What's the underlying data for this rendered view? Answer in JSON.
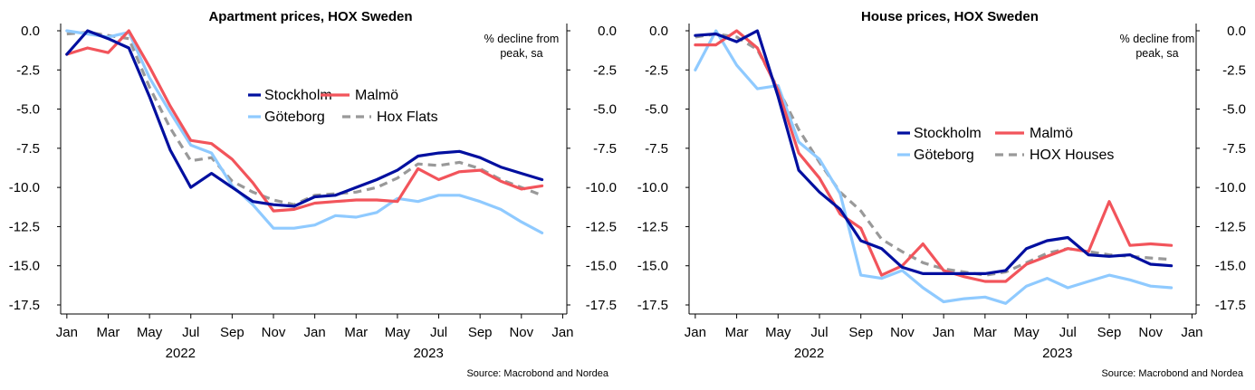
{
  "chart_data": [
    {
      "type": "line",
      "title": "Apartment prices, HOX Sweden",
      "annotation": [
        "% decline from",
        "peak, sa"
      ],
      "source": "Source: Macrobond and Nordea",
      "x_tick_labels": [
        "Jan",
        "Mar",
        "May",
        "Jul",
        "Sep",
        "Nov",
        "Jan",
        "Mar",
        "May",
        "Jul",
        "Sep",
        "Nov",
        "Jan"
      ],
      "year_labels": [
        "2022",
        "2023"
      ],
      "ylim": [
        -17.5,
        0
      ],
      "y_tick_labels": [
        "0.0",
        "-2.5",
        "-5.0",
        "-7.5",
        "-10.0",
        "-12.5",
        "-15.0",
        "-17.5"
      ],
      "grid": false,
      "legend_position": "center",
      "x_months": [
        0,
        1,
        2,
        3,
        4,
        5,
        6,
        7,
        8,
        9,
        10,
        11,
        12,
        13,
        14,
        15,
        16,
        17,
        18,
        19,
        20,
        21,
        22,
        23
      ],
      "series": [
        {
          "name": "Stockholm",
          "color": "#000f9f",
          "dash": false,
          "values": [
            -1.5,
            0.0,
            -0.5,
            -1.1,
            -4.2,
            -7.6,
            -10.0,
            -9.1,
            -10.0,
            -10.9,
            -11.1,
            -11.2,
            -10.6,
            -10.5,
            -10.0,
            -9.5,
            -8.9,
            -8.0,
            -7.8,
            -7.7,
            -8.1,
            -8.7,
            -9.1,
            -9.5
          ]
        },
        {
          "name": "Malmö",
          "color": "#f2545b",
          "dash": false,
          "values": [
            -1.5,
            -1.1,
            -1.4,
            0.0,
            -2.3,
            -4.8,
            -7.0,
            -7.2,
            -8.2,
            -9.7,
            -11.5,
            -11.4,
            -11.0,
            -10.9,
            -10.8,
            -10.8,
            -10.9,
            -8.8,
            -9.5,
            -9.0,
            -8.9,
            -9.6,
            -10.1,
            -9.9
          ]
        },
        {
          "name": "Göteborg",
          "color": "#8fcaff",
          "dash": false,
          "values": [
            0.0,
            -0.2,
            -0.4,
            -0.1,
            -3.0,
            -5.2,
            -7.3,
            -7.8,
            -9.9,
            -11.1,
            -12.6,
            -12.6,
            -12.4,
            -11.8,
            -11.9,
            -11.6,
            -10.7,
            -10.9,
            -10.5,
            -10.5,
            -10.9,
            -11.4,
            -12.2,
            -12.9
          ]
        },
        {
          "name": "Hox Flats",
          "color": "#999999",
          "dash": true,
          "values": [
            -0.2,
            -0.1,
            -0.3,
            -0.5,
            -3.6,
            -6.2,
            -8.3,
            -8.1,
            -9.6,
            -10.3,
            -10.8,
            -11.1,
            -10.5,
            -10.4,
            -10.3,
            -10.0,
            -9.4,
            -8.5,
            -8.6,
            -8.4,
            -8.8,
            -9.5,
            -10.0,
            -10.5
          ]
        }
      ]
    },
    {
      "type": "line",
      "title": "House prices, HOX Sweden",
      "annotation": [
        "% decline from",
        "peak, sa"
      ],
      "source": "Source: Macrobond and Nordea",
      "x_tick_labels": [
        "Jan",
        "Mar",
        "May",
        "Jul",
        "Sep",
        "Nov",
        "Jan",
        "Mar",
        "May",
        "Jul",
        "Sep",
        "Nov",
        "Jan"
      ],
      "year_labels": [
        "2022",
        "2023"
      ],
      "ylim": [
        -17.5,
        0
      ],
      "y_tick_labels": [
        "0.0",
        "-2.5",
        "-5.0",
        "-7.5",
        "-10.0",
        "-12.5",
        "-15.0",
        "-17.5"
      ],
      "grid": false,
      "legend_position": "center",
      "x_months": [
        0,
        1,
        2,
        3,
        4,
        5,
        6,
        7,
        8,
        9,
        10,
        11,
        12,
        13,
        14,
        15,
        16,
        17,
        18,
        19,
        20,
        21,
        22,
        23
      ],
      "series": [
        {
          "name": "Stockholm",
          "color": "#000f9f",
          "dash": false,
          "values": [
            -0.3,
            -0.2,
            -0.7,
            0.0,
            -4.2,
            -8.9,
            -10.3,
            -11.4,
            -13.4,
            -13.9,
            -15.1,
            -15.5,
            -15.5,
            -15.5,
            -15.5,
            -15.3,
            -13.9,
            -13.4,
            -13.2,
            -14.3,
            -14.4,
            -14.3,
            -14.9,
            -15.0
          ]
        },
        {
          "name": "Malmö",
          "color": "#f2545b",
          "dash": false,
          "values": [
            -0.9,
            -0.9,
            0.0,
            -1.1,
            -3.8,
            -7.8,
            -9.4,
            -11.7,
            -12.6,
            -15.6,
            -15.0,
            -13.6,
            -15.3,
            -15.7,
            -16.0,
            -16.0,
            -14.9,
            -14.4,
            -13.9,
            -14.1,
            -10.9,
            -13.7,
            -13.6,
            -13.7
          ]
        },
        {
          "name": "Göteborg",
          "color": "#8fcaff",
          "dash": false,
          "values": [
            -2.5,
            0.0,
            -2.2,
            -3.7,
            -3.5,
            -7.1,
            -8.2,
            -10.4,
            -15.6,
            -15.8,
            -15.3,
            -16.4,
            -17.3,
            -17.1,
            -17.0,
            -17.4,
            -16.3,
            -15.8,
            -16.4,
            -16.0,
            -15.6,
            -15.9,
            -16.3,
            -16.4
          ]
        },
        {
          "name": "HOX Houses",
          "color": "#999999",
          "dash": true,
          "values": [
            -0.4,
            -0.2,
            -0.4,
            -1.2,
            -3.7,
            -6.3,
            -8.4,
            -10.3,
            -11.5,
            -13.3,
            -14.1,
            -14.8,
            -15.2,
            -15.4,
            -15.6,
            -15.4,
            -14.8,
            -14.2,
            -13.9,
            -14.1,
            -14.3,
            -14.4,
            -14.5,
            -14.6
          ]
        }
      ]
    }
  ]
}
